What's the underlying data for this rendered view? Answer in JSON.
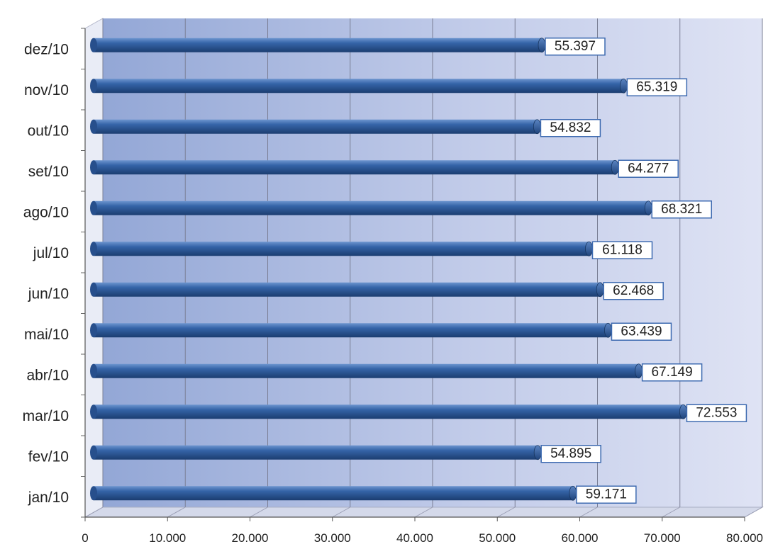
{
  "chart_data": {
    "type": "bar",
    "orientation": "horizontal",
    "categories": [
      "jan/10",
      "fev/10",
      "mar/10",
      "abr/10",
      "mai/10",
      "jun/10",
      "jul/10",
      "ago/10",
      "set/10",
      "out/10",
      "nov/10",
      "dez/10"
    ],
    "values": [
      59171,
      54895,
      72553,
      67149,
      63439,
      62468,
      61118,
      68321,
      64277,
      54832,
      65319,
      55397
    ],
    "value_labels": [
      "59.171",
      "54.895",
      "72.553",
      "67.149",
      "63.439",
      "62.468",
      "61.118",
      "68.321",
      "64.277",
      "54.832",
      "65.319",
      "55.397"
    ],
    "x_ticks": [
      0,
      10000,
      20000,
      30000,
      40000,
      50000,
      60000,
      70000,
      80000
    ],
    "x_tick_labels": [
      "0",
      "10.000",
      "20.000",
      "30.000",
      "40.000",
      "50.000",
      "60.000",
      "70.000",
      "80.000"
    ],
    "xlim": [
      0,
      80000
    ],
    "grid": true,
    "legend": "none",
    "title": "",
    "xlabel": "",
    "ylabel": "",
    "colors": {
      "bar": "#2f5c9c",
      "bar_light": "#5b86c4",
      "bar_dark": "#1b3d70",
      "plot_bg": "#b9c7e6",
      "grid": "#7b7f95",
      "label_border": "#3d6ab0"
    }
  }
}
